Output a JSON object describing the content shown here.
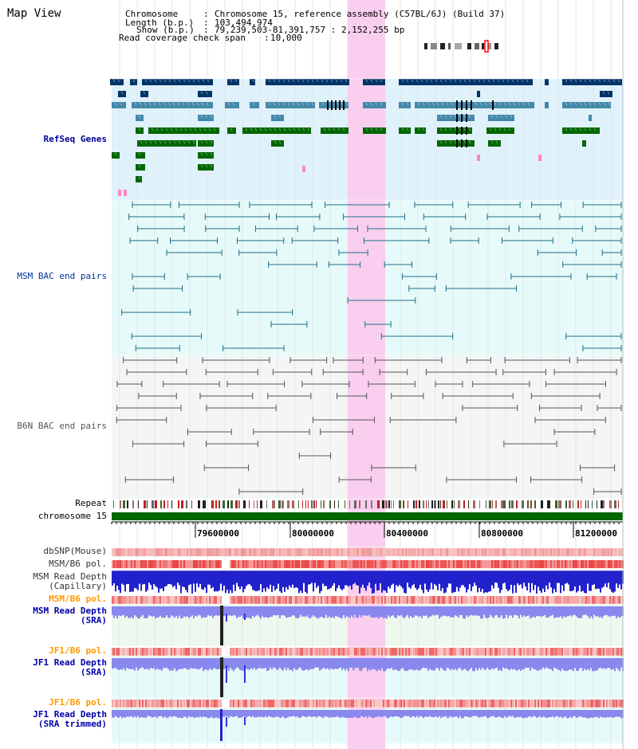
{
  "page": {
    "title": "Map View"
  },
  "header": {
    "chromosome_label": "Chromosome",
    "chromosome_value": "Chromosome 15, reference assembly (C57BL/6J) (Build 37)",
    "length_label": "Length (b.p.)",
    "length_value": "103,494,974",
    "show_label": "Show (b.p.)",
    "show_value": "79,239,503-81,391,757 : 2,152,255 bp",
    "coverage_label": "Read coverage check span",
    "coverage_value": "10,000"
  },
  "tracks": {
    "refseq": "RefSeq Genes",
    "msm_bac": "MSM BAC end pairs",
    "b6n_bac": "B6N BAC end pairs",
    "repeat": "Repeat",
    "chromosome": "chromosome 15",
    "dbsnp": "dbSNP(Mouse)",
    "msm_b6_pol_1": "MSM/B6 pol.",
    "msm_depth_cap_1": "MSM Read Depth",
    "msm_depth_cap_2": "(Capillary)",
    "msm_b6_pol_2": "MSM/B6 pol.",
    "msm_depth_sra_1": "MSM Read Depth",
    "msm_depth_sra_2": "(SRA)",
    "jf1_b6_pol_1": "JF1/B6 pol.",
    "jf1_depth_sra_1": "JF1 Read Depth",
    "jf1_depth_sra_2": "(SRA)",
    "jf1_b6_pol_2": "JF1/B6 pol.",
    "jf1_depth_trim_1": "JF1 Read Depth",
    "jf1_depth_trim_2": "(SRA trimmed)"
  },
  "axis": {
    "ticks": [
      "79600000",
      "80000000",
      "80400000",
      "80800000",
      "81200000"
    ]
  },
  "colors": {
    "refseq_label": "#000099",
    "msm_label": "#003399",
    "b6n_label": "#555555",
    "pol_orange": "#ff9900",
    "depth_blue": "#0000aa",
    "highlight": "#f9d6f0"
  }
}
